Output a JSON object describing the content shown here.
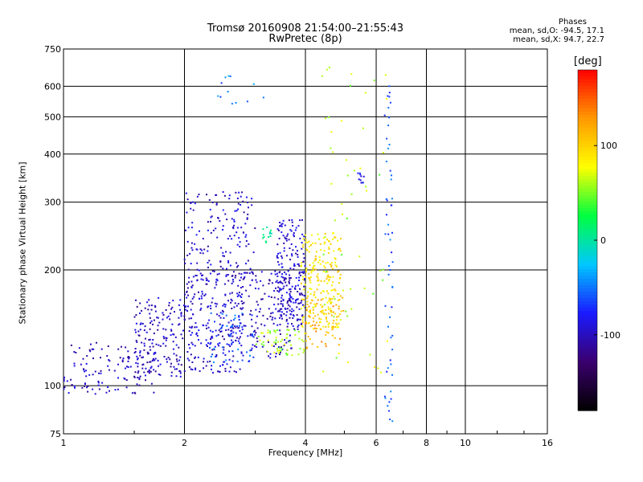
{
  "header": {
    "title_line1": "Tromsø 20160908 21:54:00–21:55:43",
    "title_line2": "RwPretec (8p)"
  },
  "phases_box": {
    "heading": "Phases",
    "line_o": "mean, sd,O: -94.5, 17.1",
    "line_x": "mean, sd,X:  94.7, 22.7"
  },
  "colorbar": {
    "unit_label": "[deg]",
    "tick_labels": [
      "100",
      "0",
      "-100"
    ],
    "tick_values": [
      100,
      0,
      -100
    ],
    "range": [
      -180,
      180
    ],
    "palette": [
      "#000000",
      "#3a006e",
      "#1a1aff",
      "#00c8ff",
      "#00ff40",
      "#ffff00",
      "#ff9900",
      "#ff0000"
    ]
  },
  "chart_data": {
    "type": "scatter",
    "title": "Tromsø 20160908 21:54:00–21:55:43",
    "subtitle": "RwPretec (8p)",
    "xlabel": "Frequency [MHz]",
    "ylabel": "Stationary phase Virtual Height [km]",
    "x_scale": "log",
    "y_scale": "log",
    "xlim": [
      1,
      16
    ],
    "ylim": [
      75,
      750
    ],
    "x_ticks": [
      1,
      2,
      4,
      6,
      8,
      10,
      16
    ],
    "x_tick_labels": [
      "1",
      "2",
      "4",
      "6",
      "8",
      "10",
      "16"
    ],
    "y_ticks": [
      75,
      100,
      200,
      300,
      400,
      500,
      600,
      750
    ],
    "y_tick_labels": [
      "75",
      "100",
      "200",
      "300",
      "400",
      "500",
      "600",
      "750"
    ],
    "grid": true,
    "color_variable": "Phase [deg]",
    "clusters": [
      {
        "name": "",
        "freq": [
          1.0,
          1.7
        ],
        "height": [
          95,
          130
        ],
        "phase": -100,
        "n": 130
      },
      {
        "name": "",
        "freq": [
          1.5,
          2.0
        ],
        "height": [
          105,
          170
        ],
        "phase": -100,
        "n": 160
      },
      {
        "name": "",
        "freq": [
          2.0,
          2.8
        ],
        "height": [
          108,
          200
        ],
        "phase": -95,
        "n": 260
      },
      {
        "name": "",
        "freq": [
          2.3,
          3.0
        ],
        "height": [
          115,
          155
        ],
        "phase": -60,
        "n": 60
      },
      {
        "name": "",
        "freq": [
          2.0,
          3.0
        ],
        "height": [
          200,
          320
        ],
        "phase": -95,
        "n": 140
      },
      {
        "name": "",
        "freq": [
          2.7,
          3.7
        ],
        "height": [
          118,
          200
        ],
        "phase": -100,
        "n": 160
      },
      {
        "name": "",
        "freq": [
          3.0,
          4.0
        ],
        "height": [
          120,
          140
        ],
        "phase": 60,
        "n": 60
      },
      {
        "name": "",
        "freq": [
          3.4,
          4.0
        ],
        "height": [
          140,
          270
        ],
        "phase": -95,
        "n": 200
      },
      {
        "name": "",
        "freq": [
          3.9,
          4.9
        ],
        "height": [
          140,
          250
        ],
        "phase": 90,
        "n": 230
      },
      {
        "name": "",
        "freq": [
          4.0,
          5.0
        ],
        "height": [
          125,
          170
        ],
        "phase": 120,
        "n": 60
      },
      {
        "name": "",
        "freq": [
          3.1,
          3.3
        ],
        "height": [
          235,
          260
        ],
        "phase": 10,
        "n": 14
      },
      {
        "name": "",
        "freq": [
          2.4,
          3.2
        ],
        "height": [
          530,
          640
        ],
        "phase": -50,
        "n": 12
      },
      {
        "name": "",
        "freq": [
          5.4,
          5.6
        ],
        "height": [
          335,
          360
        ],
        "phase": -80,
        "n": 10
      },
      {
        "name": "",
        "freq": [
          6.3,
          6.6
        ],
        "height": [
          80,
          700
        ],
        "phase": -60,
        "n": 55
      },
      {
        "name": "",
        "freq": [
          4.4,
          6.4
        ],
        "height": [
          100,
          700
        ],
        "phase": 60,
        "n": 60
      }
    ]
  }
}
